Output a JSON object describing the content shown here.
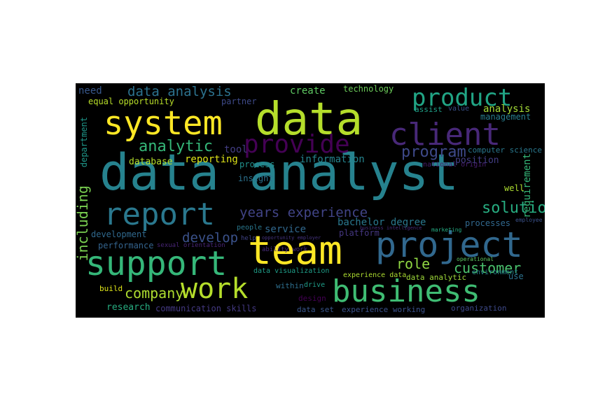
{
  "words": [
    {
      "text": "data analyst",
      "color": "#26828e"
    },
    {
      "text": "data",
      "color": "#b5de2b"
    },
    {
      "text": "system",
      "color": "#fde725"
    },
    {
      "text": "team",
      "color": "#fde725"
    },
    {
      "text": "support",
      "color": "#35b779"
    },
    {
      "text": "project",
      "color": "#31688e"
    },
    {
      "text": "business",
      "color": "#3fbc73"
    },
    {
      "text": "client",
      "color": "#482878"
    },
    {
      "text": "report",
      "color": "#2a788e"
    },
    {
      "text": "work",
      "color": "#b5de2b"
    },
    {
      "text": "product",
      "color": "#21a585"
    },
    {
      "text": "provide",
      "color": "#440154"
    },
    {
      "text": "data analysis",
      "color": "#2c728e"
    },
    {
      "text": "analytic",
      "color": "#35b779"
    },
    {
      "text": "program",
      "color": "#3e4989"
    },
    {
      "text": "years experience",
      "color": "#414487"
    },
    {
      "text": "solution",
      "color": "#27ad81"
    },
    {
      "text": "customer",
      "color": "#4ac16d"
    },
    {
      "text": "company",
      "color": "#addc30"
    },
    {
      "text": "including",
      "color": "#7ad151"
    },
    {
      "text": "develop",
      "color": "#3b528b"
    },
    {
      "text": "role",
      "color": "#90d743"
    },
    {
      "text": "create",
      "color": "#5ec962"
    },
    {
      "text": "need",
      "color": "#38588c"
    },
    {
      "text": "equal opportunity",
      "color": "#b8de29"
    },
    {
      "text": "partner",
      "color": "#3e4a89"
    },
    {
      "text": "technology",
      "color": "#6ccd5a"
    },
    {
      "text": "management",
      "color": "#287d8e"
    },
    {
      "text": "analysis",
      "color": "#a5db36"
    },
    {
      "text": "assist",
      "color": "#1fa088"
    },
    {
      "text": "value",
      "color": "#3b528b"
    },
    {
      "text": "department",
      "color": "#1f988b"
    },
    {
      "text": "tool",
      "color": "#433e85"
    },
    {
      "text": "database",
      "color": "#b5de2b"
    },
    {
      "text": "reporting",
      "color": "#dde318"
    },
    {
      "text": "process",
      "color": "#21918c"
    },
    {
      "text": "information",
      "color": "#25848e"
    },
    {
      "text": "position",
      "color": "#433e85"
    },
    {
      "text": "computer science",
      "color": "#2a788e"
    },
    {
      "text": "national origin",
      "color": "#481f70"
    },
    {
      "text": "insight",
      "color": "#2c728e"
    },
    {
      "text": "well",
      "color": "#addc30"
    },
    {
      "text": "requirement",
      "color": "#35b779"
    },
    {
      "text": "bachelor degree",
      "color": "#2a788e"
    },
    {
      "text": "service",
      "color": "#31688e"
    },
    {
      "text": "processes",
      "color": "#31688e"
    },
    {
      "text": "platform",
      "color": "#453781"
    },
    {
      "text": "development",
      "color": "#30698e"
    },
    {
      "text": "performance",
      "color": "#33638d"
    },
    {
      "text": "research",
      "color": "#27ad81"
    },
    {
      "text": "communication skills",
      "color": "#443983"
    },
    {
      "text": "data set",
      "color": "#39568c"
    },
    {
      "text": "experience working",
      "color": "#3b528b"
    },
    {
      "text": "organization",
      "color": "#3e4989"
    },
    {
      "text": "build",
      "color": "#dde318"
    },
    {
      "text": "within",
      "color": "#2e6f8e"
    },
    {
      "text": "drive",
      "color": "#1f9e89"
    },
    {
      "text": "data analytic",
      "color": "#9fda3a"
    },
    {
      "text": "experience data",
      "color": "#addc30"
    },
    {
      "text": "use",
      "color": "#2c728e"
    },
    {
      "text": "design",
      "color": "#440154"
    },
    {
      "text": "people",
      "color": "#2a788e"
    },
    {
      "text": "data visualization",
      "color": "#1f9e89"
    },
    {
      "text": "environment",
      "color": "#26828e"
    },
    {
      "text": "sexual orientation",
      "color": "#482576"
    },
    {
      "text": "business intelligence",
      "color": "#472d7b"
    },
    {
      "text": "operational",
      "color": "#5ec962"
    },
    {
      "text": "employee",
      "color": "#3b528b"
    },
    {
      "text": "marketing",
      "color": "#25ab82"
    },
    {
      "text": "help",
      "color": "#414487"
    },
    {
      "text": "ability work",
      "color": "#472c7a"
    },
    {
      "text": "opportunity employer",
      "color": "#463480"
    }
  ]
}
